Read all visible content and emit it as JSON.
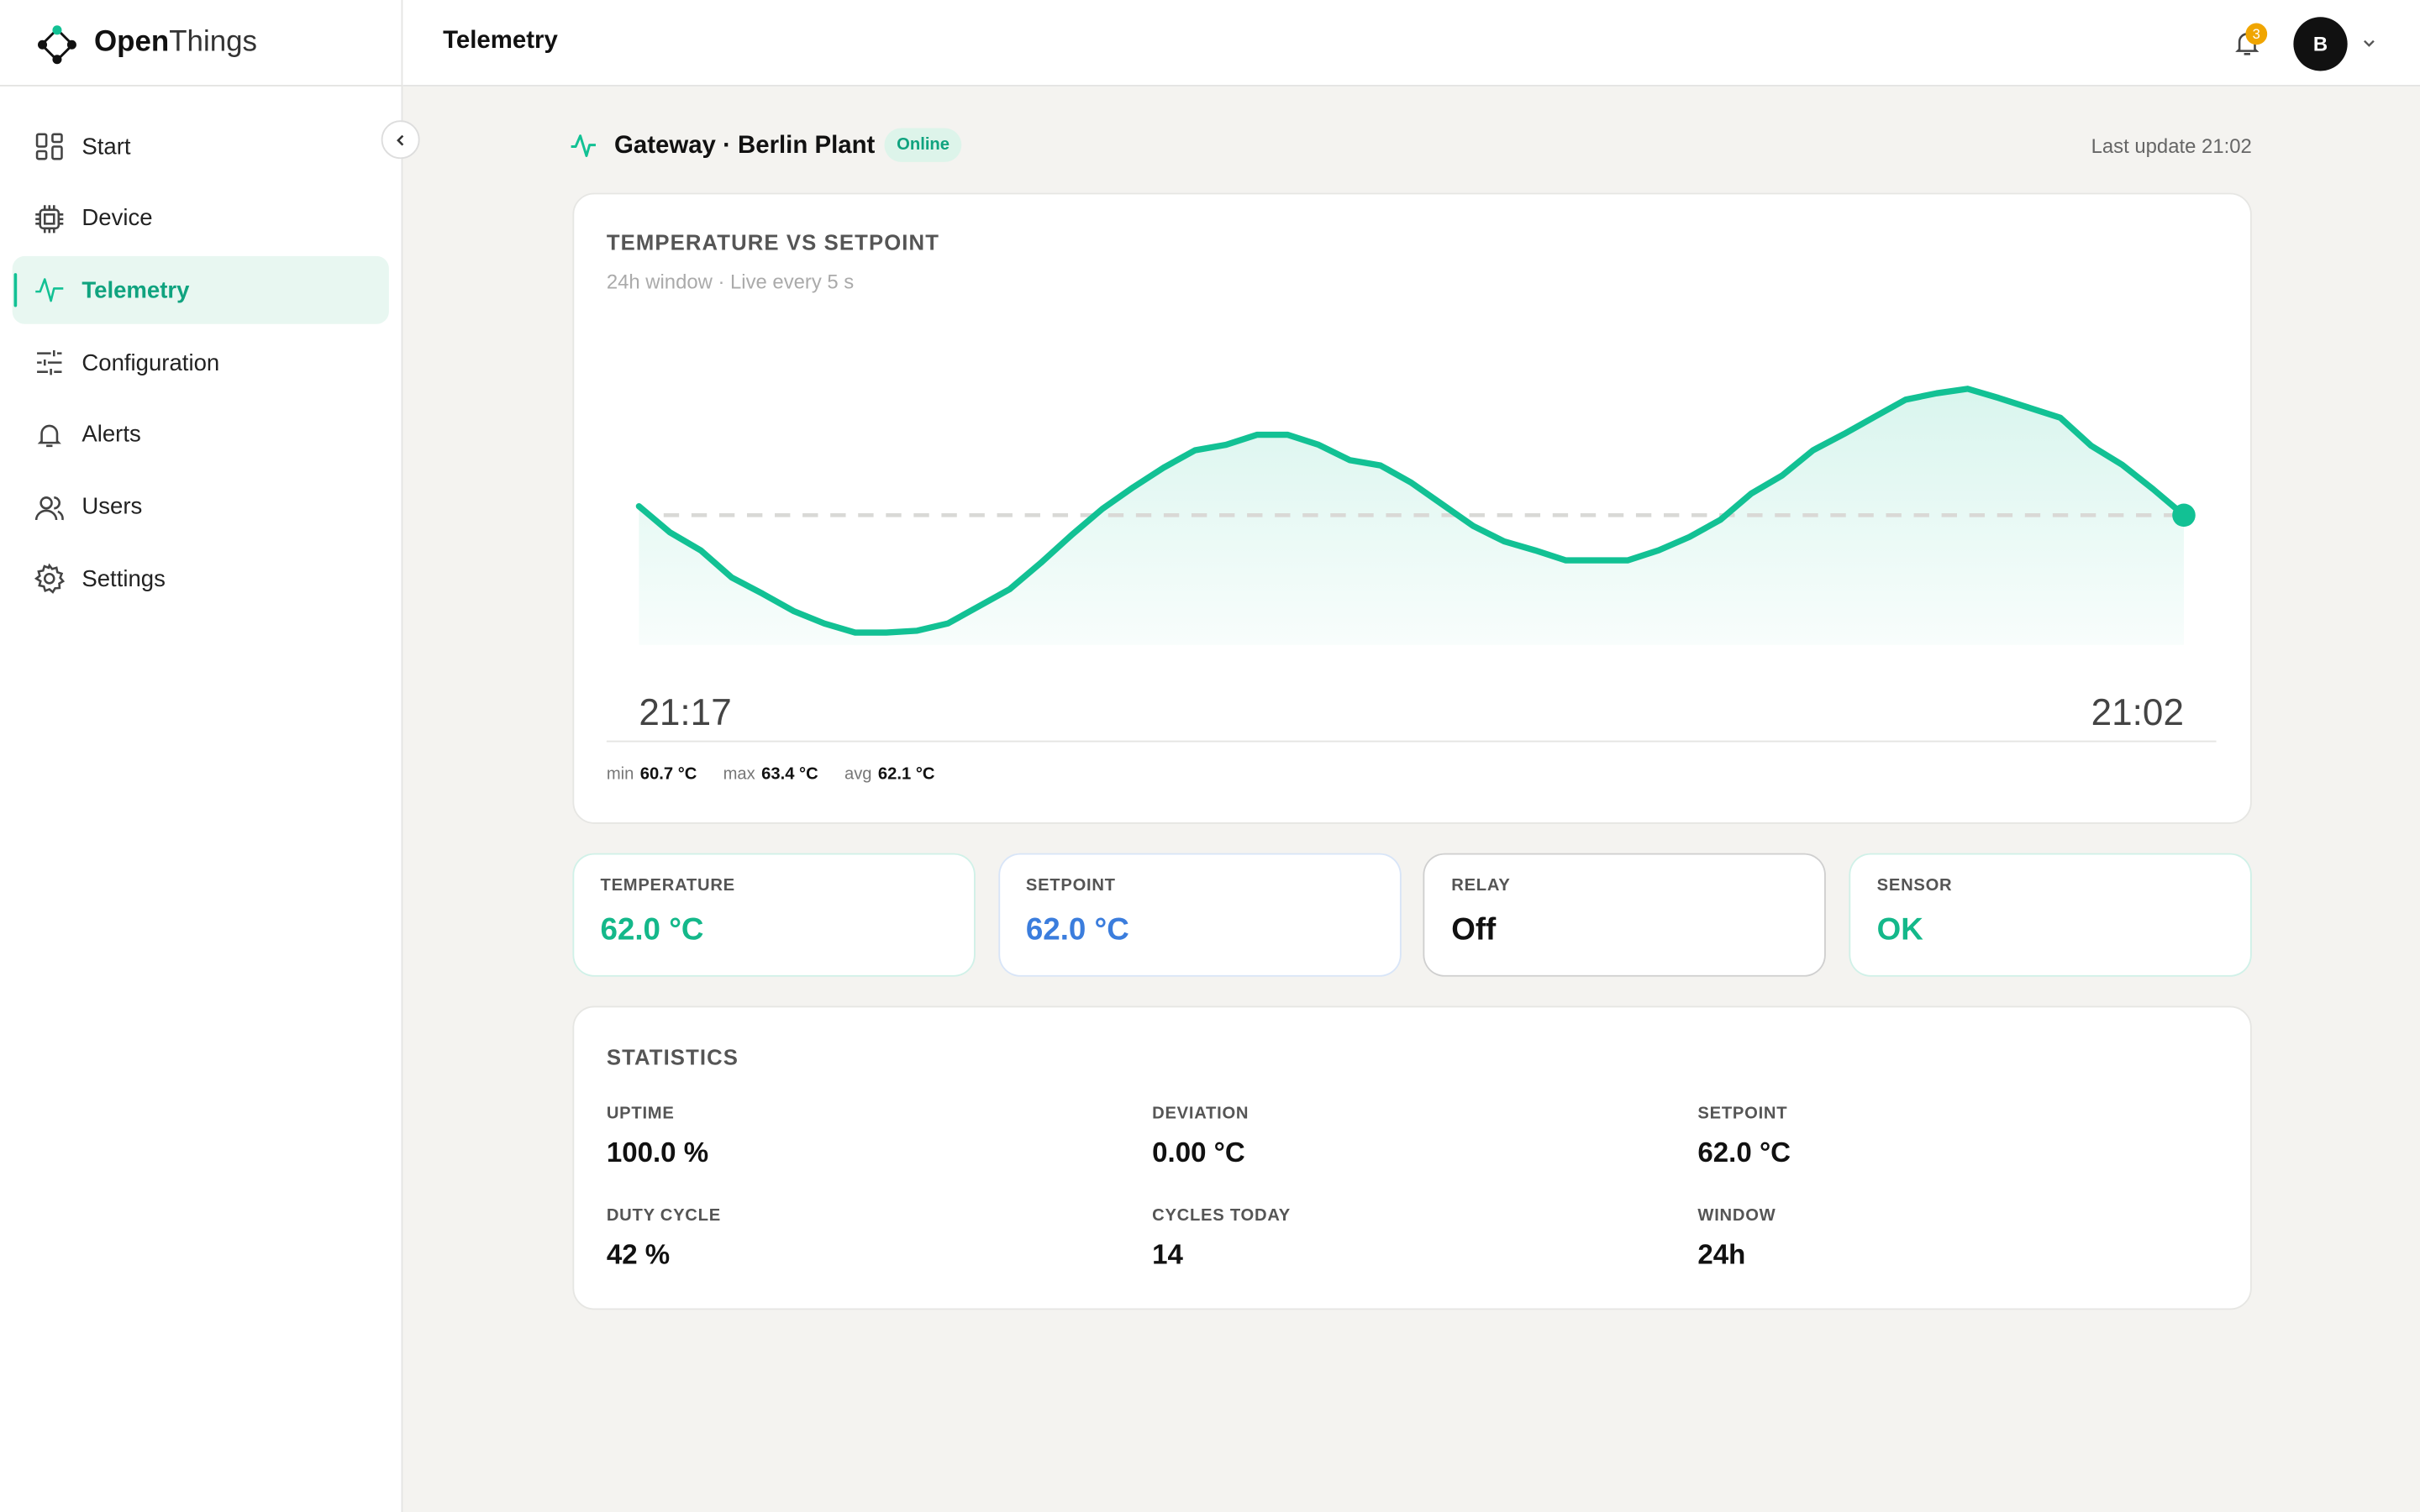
{
  "brand": {
    "bold": "Open",
    "light": "Things"
  },
  "nav": [
    {
      "label": "Start",
      "active": false
    },
    {
      "label": "Device",
      "active": false
    },
    {
      "label": "Telemetry",
      "active": true
    },
    {
      "label": "Configuration",
      "active": false
    },
    {
      "label": "Alerts",
      "active": false
    },
    {
      "label": "Users",
      "active": false
    },
    {
      "label": "Settings",
      "active": false
    }
  ],
  "header": {
    "title": "Telemetry",
    "notifications": 3,
    "avatar": "B"
  },
  "device": {
    "title": "Gateway · Berlin Plant",
    "status": "Online",
    "last_update": "Last update 21:02"
  },
  "chart_data": {
    "type": "line",
    "title": "TEMPERATURE VS SETPOINT",
    "subtitle": "24h window · Live every 5 s",
    "start_label": "21:17",
    "end_label": "21:02",
    "series": [
      {
        "color": "#12c194",
        "values": [
          62.1,
          61.81,
          61.61,
          61.31,
          61.13,
          60.94,
          60.8,
          60.7,
          60.7,
          60.72,
          60.8,
          60.99,
          61.18,
          61.47,
          61.78,
          62.07,
          62.31,
          62.53,
          62.72,
          62.78,
          62.89,
          62.89,
          62.78,
          62.61,
          62.55,
          62.36,
          62.12,
          61.88,
          61.71,
          61.61,
          61.5,
          61.5,
          61.5,
          61.61,
          61.76,
          61.95,
          62.24,
          62.44,
          62.72,
          62.9,
          63.09,
          63.28,
          63.35,
          63.4,
          63.3,
          63.19,
          63.08,
          62.77,
          62.56,
          62.29,
          62.0
        ]
      }
    ],
    "setpoint": 62.0,
    "summary": [
      {
        "label": "min",
        "value": 60.7,
        "value_label": "60.7 °C"
      },
      {
        "label": "max",
        "value": 63.4,
        "value_label": "63.4 °C"
      },
      {
        "label": "avg",
        "value": 62.1,
        "value_label": "62.1 °C"
      }
    ]
  },
  "cards": [
    {
      "label": "TEMPERATURE",
      "value": "62.0 °C",
      "color": "#14b88a"
    },
    {
      "label": "SETPOINT",
      "value": "62.0 °C",
      "color": "#3b7ddd"
    },
    {
      "label": "RELAY",
      "value": "Off",
      "color": "#111111"
    },
    {
      "label": "SENSOR",
      "value": "OK",
      "color": "#14b88a"
    }
  ],
  "statistics": {
    "title": "STATISTICS",
    "items": [
      {
        "label": "UPTIME",
        "value": "100.0 %"
      },
      {
        "label": "DEVIATION",
        "value": "0.00 °C"
      },
      {
        "label": "SETPOINT",
        "value": "62.0 °C"
      },
      {
        "label": "DUTY CYCLE",
        "value": "42 %"
      },
      {
        "label": "CYCLES TODAY",
        "value": "14"
      },
      {
        "label": "WINDOW",
        "value": "24h"
      }
    ]
  }
}
